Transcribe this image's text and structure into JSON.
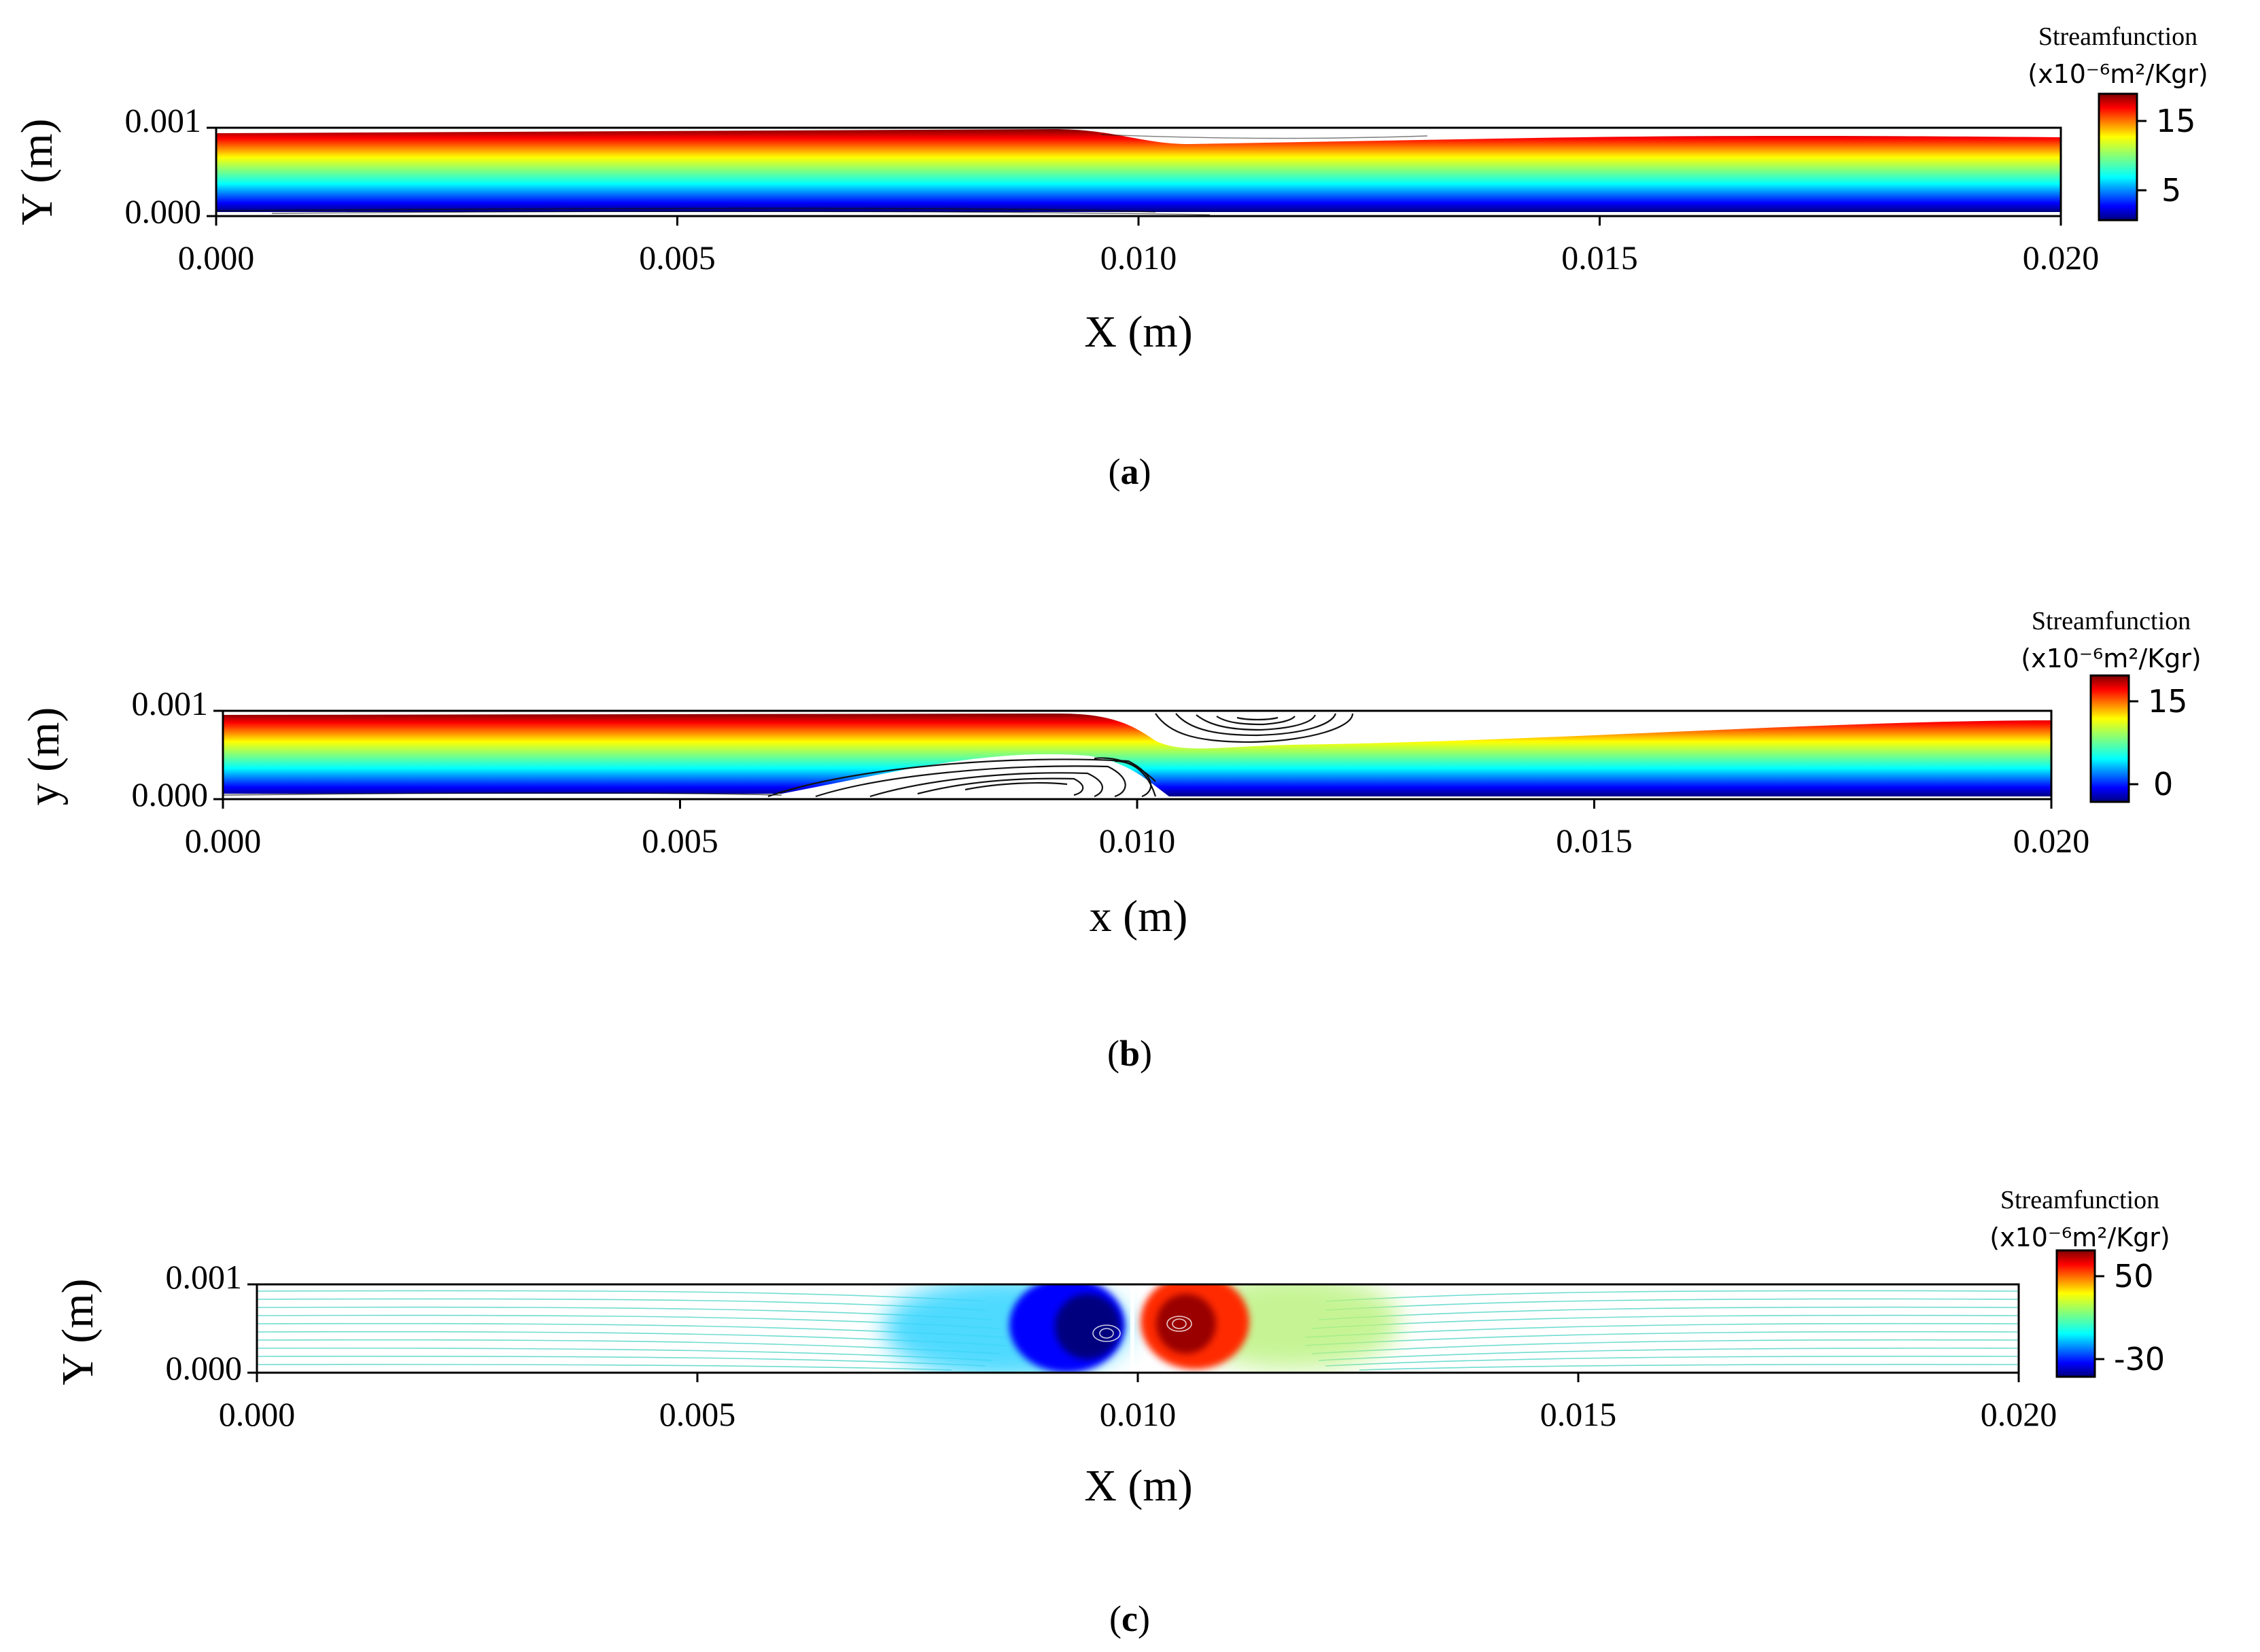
{
  "figure": {
    "panels": [
      {
        "caption": "(a)",
        "caption_letter": "a",
        "xlabel": "X (m)",
        "ylabel": "Y (m)",
        "colorbar": {
          "title": "Streamfunction",
          "units": "(x10⁻⁶m²/Kgr)",
          "tick_labels": [
            "15",
            "5"
          ]
        }
      },
      {
        "caption": "(b)",
        "caption_letter": "b",
        "xlabel": "x (m)",
        "ylabel": "y (m)",
        "colorbar": {
          "title": "Streamfunction",
          "units": "(x10⁻⁶m²/Kgr)",
          "tick_labels": [
            "15",
            "0"
          ]
        }
      },
      {
        "caption": "(c)",
        "caption_letter": "c",
        "xlabel": "X (m)",
        "ylabel": "Y (m)",
        "colorbar": {
          "title": "Streamfunction",
          "units": "(x10⁻⁶m²/Kgr)",
          "tick_labels": [
            "50",
            "-30"
          ]
        }
      }
    ]
  },
  "chart_data": [
    {
      "type": "heatmap",
      "subtype": "contour",
      "title": "",
      "xlabel": "X (m)",
      "ylabel": "Y (m)",
      "xlim": [
        0.0,
        0.02
      ],
      "ylim": [
        0.0,
        0.001
      ],
      "x_ticks": [
        0.0,
        0.005,
        0.01,
        0.015,
        0.02
      ],
      "x_tick_labels": [
        "0.000",
        "0.005",
        "0.010",
        "0.015",
        "0.020"
      ],
      "y_ticks": [
        0.0,
        0.001
      ],
      "y_tick_labels": [
        "0.000",
        "0.001"
      ],
      "colormap": "jet",
      "colorbar": {
        "min": 0,
        "max": 18,
        "ticks": [
          15,
          5
        ],
        "tick_labels": [
          "15",
          "5"
        ]
      },
      "field": "Streamfunction",
      "description_values": {
        "constriction_center_x": 0.011,
        "dip_depth": 0.0001,
        "vortices": []
      }
    },
    {
      "type": "heatmap",
      "subtype": "contour",
      "title": "",
      "xlabel": "x (m)",
      "ylabel": "y (m)",
      "xlim": [
        0.0,
        0.02
      ],
      "ylim": [
        0.0,
        0.001
      ],
      "x_ticks": [
        0.0,
        0.005,
        0.01,
        0.015,
        0.02
      ],
      "x_tick_labels": [
        "0.000",
        "0.005",
        "0.010",
        "0.015",
        "0.020"
      ],
      "y_ticks": [
        0.0,
        0.001
      ],
      "y_tick_labels": [
        "0.000",
        "0.001"
      ],
      "colormap": "jet",
      "colorbar": {
        "min": -3,
        "max": 18,
        "ticks": [
          15,
          0
        ],
        "tick_labels": [
          "15",
          "0"
        ]
      },
      "field": "Streamfunction",
      "description_values": {
        "vortices": [
          {
            "x": 0.009,
            "y": 0.0002,
            "sense": "bottom"
          },
          {
            "x": 0.0108,
            "y": 0.00085,
            "sense": "top"
          }
        ]
      }
    },
    {
      "type": "heatmap",
      "subtype": "contour",
      "title": "",
      "xlabel": "X (m)",
      "ylabel": "Y (m)",
      "xlim": [
        0.0,
        0.02
      ],
      "ylim": [
        0.0,
        0.001
      ],
      "x_ticks": [
        0.0,
        0.005,
        0.01,
        0.015,
        0.02
      ],
      "x_tick_labels": [
        "0.000",
        "0.005",
        "0.010",
        "0.015",
        "0.020"
      ],
      "y_ticks": [
        0.0,
        0.001
      ],
      "y_tick_labels": [
        "0.000",
        "0.001"
      ],
      "colormap": "jet",
      "colorbar": {
        "min": -40,
        "max": 65,
        "ticks": [
          50,
          -30
        ],
        "tick_labels": [
          "50",
          "-30"
        ]
      },
      "field": "Streamfunction",
      "description_values": {
        "vortices": [
          {
            "x": 0.0096,
            "y": 0.00045,
            "sense": "negative"
          },
          {
            "x": 0.0105,
            "y": 0.0005,
            "sense": "positive"
          }
        ]
      }
    }
  ]
}
